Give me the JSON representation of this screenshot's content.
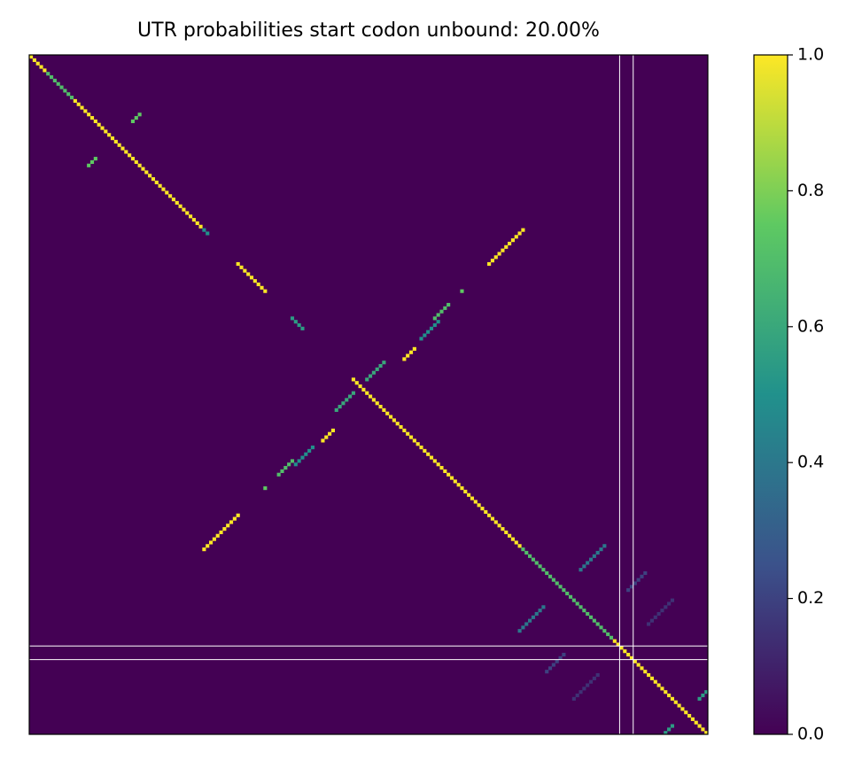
{
  "chart_data": {
    "type": "heatmap",
    "title": "UTR probabilities start codon unbound: 20.00%",
    "xlim": [
      0,
      200
    ],
    "ylim": [
      0,
      200
    ],
    "colormap": {
      "name": "viridis",
      "colors": [
        "#440154",
        "#3b528b",
        "#21918c",
        "#5ec962",
        "#fde725"
      ]
    },
    "clim": [
      0,
      1
    ],
    "cticks": [
      {
        "value": 0,
        "label": "0.0"
      },
      {
        "value": 0.2,
        "label": "0.2"
      },
      {
        "value": 0.4,
        "label": "0.4"
      },
      {
        "value": 0.6,
        "label": "0.6"
      },
      {
        "value": 0.8,
        "label": "0.8"
      },
      {
        "value": 1,
        "label": "1.0"
      }
    ],
    "marker_lines": [
      174,
      178
    ],
    "marker_color": "#ffffff",
    "diagonal": [
      {
        "start": 0,
        "length": 5,
        "value": 1
      },
      {
        "start": 5,
        "length": 8,
        "value": 0.7
      },
      {
        "start": 13,
        "length": 38,
        "value": 1
      },
      {
        "start": 51,
        "length": 2,
        "value": 0.5
      },
      {
        "start": 61,
        "length": 9,
        "value": 1
      },
      {
        "start": 77,
        "length": 4,
        "value": 0.55
      },
      {
        "start": 95,
        "length": 50,
        "value": 1
      },
      {
        "start": 145,
        "length": 27,
        "value": 0.7
      },
      {
        "start": 172,
        "length": 28,
        "value": 1
      }
    ],
    "stems": [
      {
        "row": 17,
        "col": 32,
        "length": 3,
        "value": 0.75
      },
      {
        "row": 51,
        "col": 145,
        "length": 11,
        "value": 1
      },
      {
        "row": 69,
        "col": 127,
        "length": 1,
        "value": 0.75
      },
      {
        "row": 73,
        "col": 123,
        "length": 5,
        "value": 0.7
      },
      {
        "row": 78,
        "col": 120,
        "length": 6,
        "value": 0.5
      },
      {
        "row": 86,
        "col": 113,
        "length": 4,
        "value": 1
      },
      {
        "row": 90,
        "col": 104,
        "length": 6,
        "value": 0.6
      },
      {
        "row": 144,
        "col": 169,
        "length": 8,
        "value": 0.4
      },
      {
        "row": 152,
        "col": 181,
        "length": 6,
        "value": 0.2
      },
      {
        "row": 160,
        "col": 189,
        "length": 8,
        "value": 0.15
      },
      {
        "row": 187,
        "col": 199,
        "length": 3,
        "value": 0.55
      }
    ]
  }
}
